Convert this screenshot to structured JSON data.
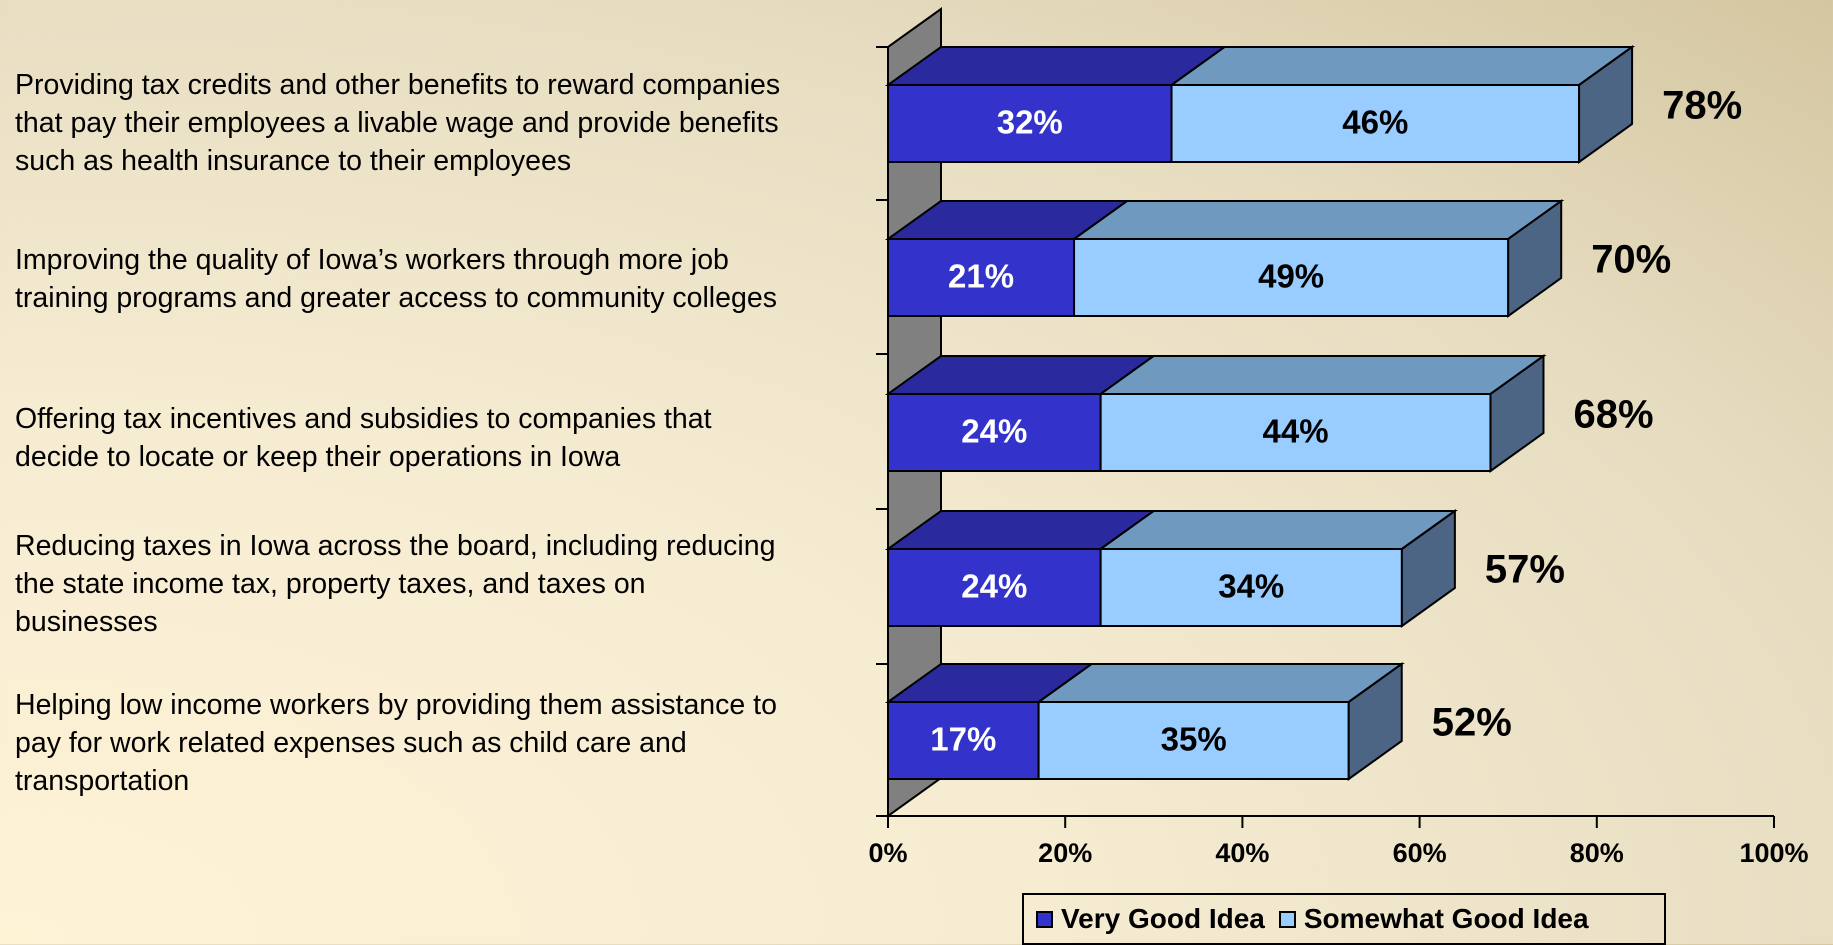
{
  "chart_data": {
    "type": "bar",
    "orientation": "horizontal",
    "stacked": true,
    "three_d": true,
    "categories": [
      "Providing tax credits and other benefits to reward companies that pay their employees a livable wage and provide benefits such as health insurance to their employees",
      "Improving the quality of Iowa’s workers through more job training programs and  greater access to community colleges",
      "Offering tax incentives and subsidies to companies that decide to locate or keep their operations in Iowa",
      "Reducing taxes in Iowa across the board, including reducing the state income tax, property taxes, and taxes on businesses",
      "Helping low income workers by providing them assistance to pay for work related expenses such as child care and transportation"
    ],
    "category_lines": [
      [
        "Providing tax credits and other benefits to reward companies",
        "that pay their employees a livable wage and provide benefits",
        "such as health insurance to their employees"
      ],
      [
        "Improving the quality of Iowa’s workers through more job",
        "training programs and  greater access to community colleges"
      ],
      [
        "Offering tax incentives and subsidies to companies that",
        "decide to locate or keep their operations in Iowa"
      ],
      [
        "Reducing taxes in Iowa across the board, including reducing",
        "the state income tax, property taxes, and taxes on",
        "businesses"
      ],
      [
        "Helping low income workers by providing them assistance to",
        "pay for work related expenses such as child care and",
        "transportation"
      ]
    ],
    "series": [
      {
        "name": "Very Good Idea",
        "values": [
          32,
          21,
          24,
          24,
          17
        ],
        "labels": [
          "32%",
          "21%",
          "24%",
          "24%",
          "17%"
        ],
        "color": "#3333cc",
        "top_color": "#2a2a9e"
      },
      {
        "name": "Somewhat Good Idea",
        "values": [
          46,
          49,
          44,
          34,
          35
        ],
        "labels": [
          "46%",
          "49%",
          "44%",
          "34%",
          "35%"
        ],
        "color": "#99ccff",
        "top_color": "#7099c0",
        "side_color": "#4d6585"
      }
    ],
    "totals": [
      "78%",
      "70%",
      "68%",
      "57%",
      "52%"
    ],
    "total_values": [
      78,
      70,
      68,
      57,
      52
    ],
    "x_ticks": [
      "0%",
      "20%",
      "40%",
      "60%",
      "80%",
      "100%"
    ],
    "xlim": [
      0,
      100
    ],
    "legend_position": "bottom",
    "grid": false,
    "wall_color": "#808080"
  }
}
